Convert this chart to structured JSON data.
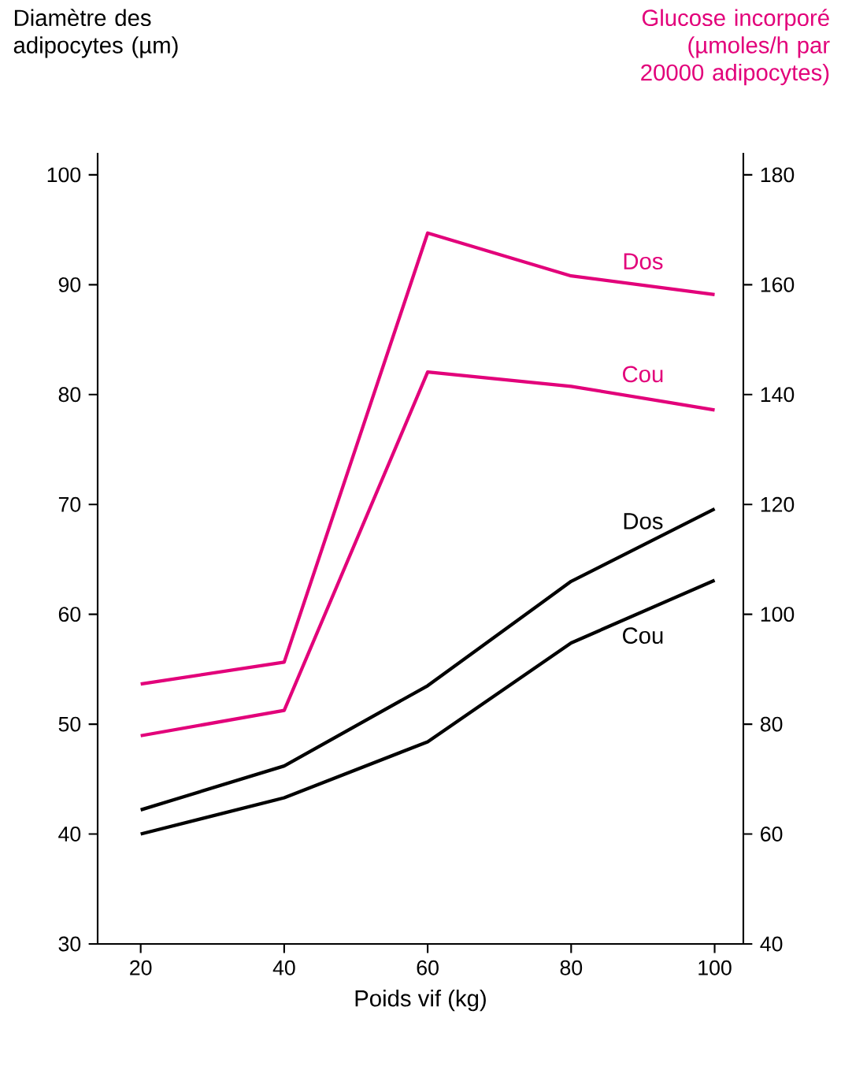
{
  "chart_data": {
    "type": "line",
    "xlabel": "Poids vif (kg)",
    "ylabel": "Diamètre des adipocytes (µm)",
    "y2label": "Glucose incorporé (µmoles/h par 20000 adipocytes)",
    "x": [
      20,
      40,
      60,
      80,
      100
    ],
    "series": [
      {
        "name": "Dos",
        "color": "#e2007a",
        "axis": "y2",
        "values": [
          87.3,
          91.3,
          169.4,
          161.6,
          158.2
        ]
      },
      {
        "name": "Cou",
        "color": "#e2007a",
        "axis": "y2",
        "values": [
          77.9,
          82.5,
          144.1,
          141.5,
          137.2
        ]
      },
      {
        "name": "Dos",
        "color": "#000000",
        "values": [
          42.2,
          46.2,
          53.5,
          63,
          69.6
        ]
      },
      {
        "name": "Cou",
        "color": "#000000",
        "values": [
          40,
          43.3,
          48.4,
          57.4,
          63.1
        ]
      }
    ],
    "xlim": [
      14,
      104
    ],
    "xticks": [
      20,
      40,
      60,
      80,
      100
    ],
    "ylim": [
      30,
      102
    ],
    "yticks": [
      30,
      40,
      50,
      60,
      70,
      80,
      90,
      100
    ],
    "y2lim": [
      40,
      184
    ],
    "y2ticks": [
      40,
      60,
      80,
      100,
      120,
      140,
      160,
      180
    ]
  }
}
